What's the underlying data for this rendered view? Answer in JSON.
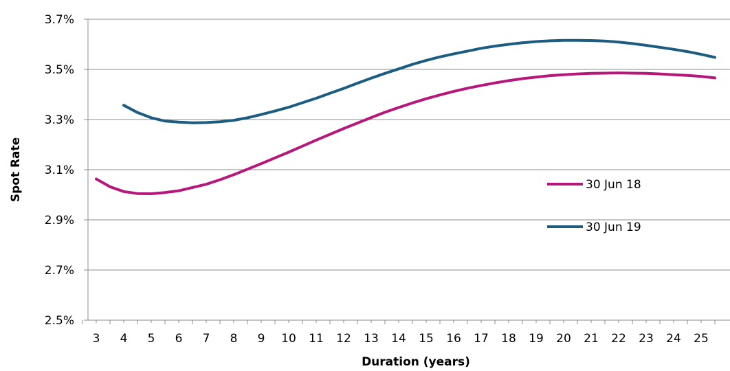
{
  "chart_data": {
    "type": "line",
    "title": "",
    "xlabel": "Duration (years)",
    "ylabel": "Spot Rate",
    "xticks": [
      3,
      4,
      5,
      6,
      7,
      8,
      9,
      10,
      11,
      12,
      13,
      14,
      15,
      16,
      17,
      18,
      19,
      20,
      21,
      22,
      23,
      24,
      25
    ],
    "yticks": [
      "2.5%",
      "2.7%",
      "2.9%",
      "3.1%",
      "3.3%",
      "3.5%",
      "3.7%"
    ],
    "ylim": [
      2.5,
      3.7
    ],
    "xlim": [
      2.5,
      25.5
    ],
    "grid": "horizontal",
    "legend": "center-right",
    "series": [
      {
        "name": "30 Jun 18",
        "color": "#b5177a",
        "x": [
          3,
          3.5,
          4,
          4.5,
          5,
          5.5,
          6,
          6.5,
          7,
          7.5,
          8,
          8.5,
          9,
          9.5,
          10,
          10.5,
          11,
          11.5,
          12,
          12.5,
          13,
          13.5,
          14,
          14.5,
          15,
          15.5,
          16,
          16.5,
          17,
          17.5,
          18,
          18.5,
          19,
          19.5,
          20,
          20.5,
          21,
          21.5,
          22,
          22.5,
          23,
          23.5,
          24,
          24.5,
          25,
          25.5
        ],
        "values": [
          3.063,
          3.032,
          3.013,
          3.005,
          3.004,
          3.009,
          3.016,
          3.029,
          3.042,
          3.06,
          3.08,
          3.102,
          3.124,
          3.147,
          3.17,
          3.194,
          3.218,
          3.241,
          3.264,
          3.286,
          3.308,
          3.329,
          3.348,
          3.366,
          3.383,
          3.398,
          3.412,
          3.425,
          3.436,
          3.446,
          3.455,
          3.463,
          3.469,
          3.475,
          3.479,
          3.482,
          3.484,
          3.485,
          3.486,
          3.485,
          3.484,
          3.482,
          3.479,
          3.476,
          3.472,
          3.466
        ]
      },
      {
        "name": "30 Jun 19",
        "color": "#1b5c80",
        "x": [
          4,
          4.5,
          5,
          5.5,
          6,
          6.5,
          7,
          7.5,
          8,
          8.5,
          9,
          9.5,
          10,
          10.5,
          11,
          11.5,
          12,
          12.5,
          13,
          13.5,
          14,
          14.5,
          15,
          15.5,
          16,
          16.5,
          17,
          17.5,
          18,
          18.5,
          19,
          19.5,
          20,
          20.5,
          21,
          21.5,
          22,
          22.5,
          23,
          23.5,
          24,
          24.5,
          25,
          25.5
        ],
        "values": [
          3.357,
          3.328,
          3.307,
          3.294,
          3.29,
          3.287,
          3.288,
          3.291,
          3.297,
          3.307,
          3.32,
          3.334,
          3.349,
          3.367,
          3.385,
          3.405,
          3.424,
          3.445,
          3.465,
          3.484,
          3.502,
          3.52,
          3.536,
          3.55,
          3.562,
          3.573,
          3.584,
          3.593,
          3.6,
          3.606,
          3.611,
          3.614,
          3.616,
          3.616,
          3.615,
          3.613,
          3.609,
          3.603,
          3.596,
          3.588,
          3.58,
          3.571,
          3.56,
          3.548
        ]
      }
    ]
  }
}
